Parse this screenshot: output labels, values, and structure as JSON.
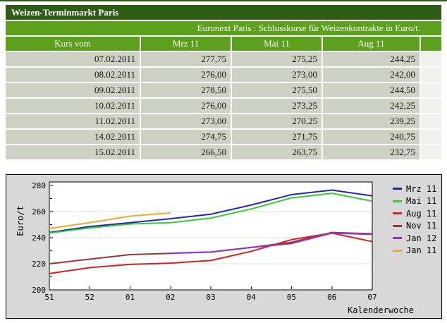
{
  "page": {
    "accent_dark_green": "#2e5c15",
    "accent_green": "#5ca01e",
    "row_bg": "#ccd2c4",
    "spacer_bg": "#f0f2ec",
    "chart_bg": "#d8d8d8"
  },
  "table": {
    "title": "Weizen-Terminmarkt Paris",
    "subtitle": "Euronext Paris : Schlusskurse für Weizenkontrakte in Euro/t.",
    "columns": [
      "Kurs vom",
      "Mrz 11",
      "Mai 11",
      "Aug 11"
    ],
    "rows": [
      {
        "date": "07.02.2011",
        "values": [
          "277,75",
          "275,25",
          "244,25"
        ]
      },
      {
        "date": "08.02.2011",
        "values": [
          "276,00",
          "273,00",
          "242,00"
        ]
      },
      {
        "date": "09.02.2011",
        "values": [
          "278,50",
          "275,50",
          "244,50"
        ]
      },
      {
        "date": "10.02.2011",
        "values": [
          "276,00",
          "273,25",
          "242,25"
        ]
      },
      {
        "date": "11.02.2011",
        "values": [
          "273,00",
          "270,25",
          "239,25"
        ]
      },
      {
        "date": "14.02.2011",
        "values": [
          "274,75",
          "271,75",
          "240,75"
        ]
      },
      {
        "date": "15.02.2011",
        "values": [
          "266,50",
          "263,75",
          "232,75"
        ]
      }
    ]
  },
  "chart_data": {
    "type": "line",
    "title": "",
    "xlabel": "Kalenderwoche",
    "ylabel": "Euro/t",
    "x_ticks": [
      "51",
      "52",
      "01",
      "02",
      "03",
      "04",
      "05",
      "06",
      "07"
    ],
    "y_ticks": [
      200,
      220,
      240,
      260,
      280
    ],
    "y_minor_ticks": [
      210,
      230,
      250,
      270
    ],
    "y_gridlines": [
      220,
      240,
      260
    ],
    "ylim": [
      200,
      282.5
    ],
    "grid": "horizontal",
    "legend_position": "right",
    "series": [
      {
        "name": "Mrz 11",
        "color": "#2323bb",
        "values": [
          244,
          248.5,
          251.5,
          254.5,
          258,
          265,
          273,
          276.5,
          272
        ]
      },
      {
        "name": "Mai 11",
        "color": "#33cc33",
        "values": [
          243.5,
          247.5,
          250.5,
          251.5,
          255,
          262,
          270.5,
          274,
          268
        ]
      },
      {
        "name": "Aug 11",
        "color": "#d22222",
        "values": [
          212.5,
          217,
          219.5,
          220.5,
          222.5,
          229.5,
          238.5,
          243.5,
          237
        ]
      },
      {
        "name": "Nov 11",
        "color": "#9e3535",
        "values": [
          220,
          223.5,
          227,
          228,
          229,
          232.5,
          236.5,
          244,
          243
        ]
      },
      {
        "name": "Jan 12",
        "color": "#9333cc",
        "values": [
          null,
          null,
          null,
          228,
          229,
          232.5,
          235.5,
          243.5,
          242.5
        ]
      },
      {
        "name": "Jan 11",
        "color": "#eda832",
        "values": [
          247,
          251.5,
          256.5,
          259,
          null,
          null,
          null,
          null,
          null
        ]
      }
    ]
  }
}
